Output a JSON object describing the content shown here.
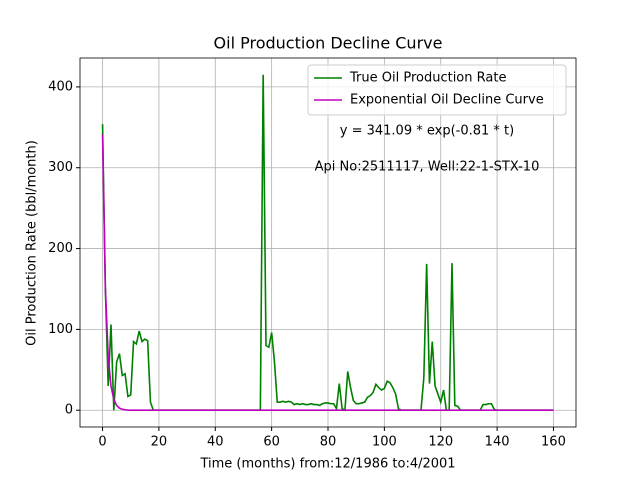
{
  "chart_data": {
    "type": "line",
    "title": "Oil Production Decline Curve",
    "xlabel": "Time (months) from:12/1986 to:4/2001",
    "ylabel": "Oil Production Rate (bbl/month)",
    "annotations": [
      "y = 341.09 * exp(-0.81 * t)",
      "Api No:2511117, Well:22-1-STX-10"
    ],
    "x": [
      0,
      1,
      2,
      3,
      4,
      5,
      6,
      7,
      8,
      9,
      10,
      11,
      12,
      13,
      14,
      15,
      16,
      17,
      18,
      19,
      20,
      21,
      22,
      23,
      24,
      25,
      26,
      27,
      28,
      29,
      30,
      31,
      32,
      33,
      34,
      35,
      36,
      37,
      38,
      39,
      40,
      41,
      42,
      43,
      44,
      45,
      46,
      47,
      48,
      49,
      50,
      51,
      52,
      53,
      54,
      55,
      56,
      57,
      58,
      59,
      60,
      61,
      62,
      63,
      64,
      65,
      66,
      67,
      68,
      69,
      70,
      71,
      72,
      73,
      74,
      75,
      76,
      77,
      78,
      79,
      80,
      81,
      82,
      83,
      84,
      85,
      86,
      87,
      88,
      89,
      90,
      91,
      92,
      93,
      94,
      95,
      96,
      97,
      98,
      99,
      100,
      101,
      102,
      103,
      104,
      105,
      106,
      107,
      108,
      109,
      110,
      111,
      112,
      113,
      114,
      115,
      116,
      117,
      118,
      119,
      120,
      121,
      122,
      123,
      124,
      125,
      126,
      127,
      128,
      129,
      130,
      131,
      132,
      133,
      134,
      135,
      136,
      137,
      138,
      139,
      140,
      141,
      142,
      143,
      144,
      145,
      146,
      147,
      148,
      149,
      150,
      151,
      152,
      153,
      154,
      155,
      156,
      157,
      158,
      159,
      160
    ],
    "series": [
      {
        "name": "True Oil Production Rate",
        "color": "#008000",
        "values": [
          354,
          150,
          30,
          106,
          0,
          60,
          70,
          43,
          45,
          17,
          19,
          85,
          82,
          98,
          85,
          88,
          86,
          10,
          0,
          0,
          0,
          0,
          0,
          0,
          0,
          0,
          0,
          0,
          0,
          0,
          0,
          0,
          0,
          0,
          0,
          0,
          0,
          0,
          0,
          0,
          0,
          0,
          0,
          0,
          0,
          0,
          0,
          0,
          0,
          0,
          0,
          0,
          0,
          0,
          0,
          0,
          0,
          415,
          80,
          78,
          96,
          60,
          10,
          10,
          11,
          10,
          11,
          10,
          7,
          8,
          7,
          8,
          7,
          7,
          8,
          7,
          7,
          6,
          8,
          9,
          9,
          8,
          8,
          2,
          33,
          2,
          0,
          48,
          28,
          12,
          8,
          8,
          9,
          10,
          16,
          18,
          22,
          32,
          28,
          25,
          27,
          36,
          34,
          28,
          20,
          2,
          0,
          0,
          0,
          0,
          0,
          0,
          0,
          0,
          40,
          181,
          33,
          85,
          30,
          20,
          10,
          25,
          0,
          0,
          182,
          6,
          5,
          0,
          0,
          0,
          0,
          0,
          0,
          0,
          0,
          7,
          7,
          8,
          8,
          1,
          0,
          0,
          0,
          0,
          0,
          0,
          0,
          0,
          0,
          0,
          0,
          0,
          0,
          0,
          0,
          0,
          0,
          0,
          0,
          0,
          0
        ]
      },
      {
        "name": "Exponential Oil Decline Curve",
        "color": "#bf00bf",
        "values": [
          341.09,
          151.6,
          67.4,
          29.9,
          13.3,
          5.9,
          2.6,
          1.2,
          0.5,
          0.2,
          0.1,
          0,
          0,
          0,
          0,
          0,
          0,
          0,
          0,
          0,
          0,
          0,
          0,
          0,
          0,
          0,
          0,
          0,
          0,
          0,
          0,
          0,
          0,
          0,
          0,
          0,
          0,
          0,
          0,
          0,
          0,
          0,
          0,
          0,
          0,
          0,
          0,
          0,
          0,
          0,
          0,
          0,
          0,
          0,
          0,
          0,
          0,
          0,
          0,
          0,
          0,
          0,
          0,
          0,
          0,
          0,
          0,
          0,
          0,
          0,
          0,
          0,
          0,
          0,
          0,
          0,
          0,
          0,
          0,
          0,
          0,
          0,
          0,
          0,
          0,
          0,
          0,
          0,
          0,
          0,
          0,
          0,
          0,
          0,
          0,
          0,
          0,
          0,
          0,
          0,
          0,
          0,
          0,
          0,
          0,
          0,
          0,
          0,
          0,
          0,
          0,
          0,
          0,
          0,
          0,
          0,
          0,
          0,
          0,
          0,
          0,
          0,
          0,
          0,
          0,
          0,
          0,
          0,
          0,
          0,
          0,
          0,
          0,
          0,
          0,
          0,
          0,
          0,
          0,
          0,
          0,
          0,
          0,
          0,
          0,
          0,
          0,
          0,
          0,
          0,
          0,
          0,
          0,
          0,
          0,
          0,
          0,
          0,
          0,
          0,
          0
        ]
      }
    ],
    "xlim": [
      -8,
      168
    ],
    "xticks": [
      0,
      20,
      40,
      60,
      80,
      100,
      120,
      140,
      160
    ],
    "ylim": [
      -20.75,
      435.75
    ],
    "yticks": [
      0,
      100,
      200,
      300,
      400
    ],
    "grid": true,
    "legend": "upper right"
  }
}
